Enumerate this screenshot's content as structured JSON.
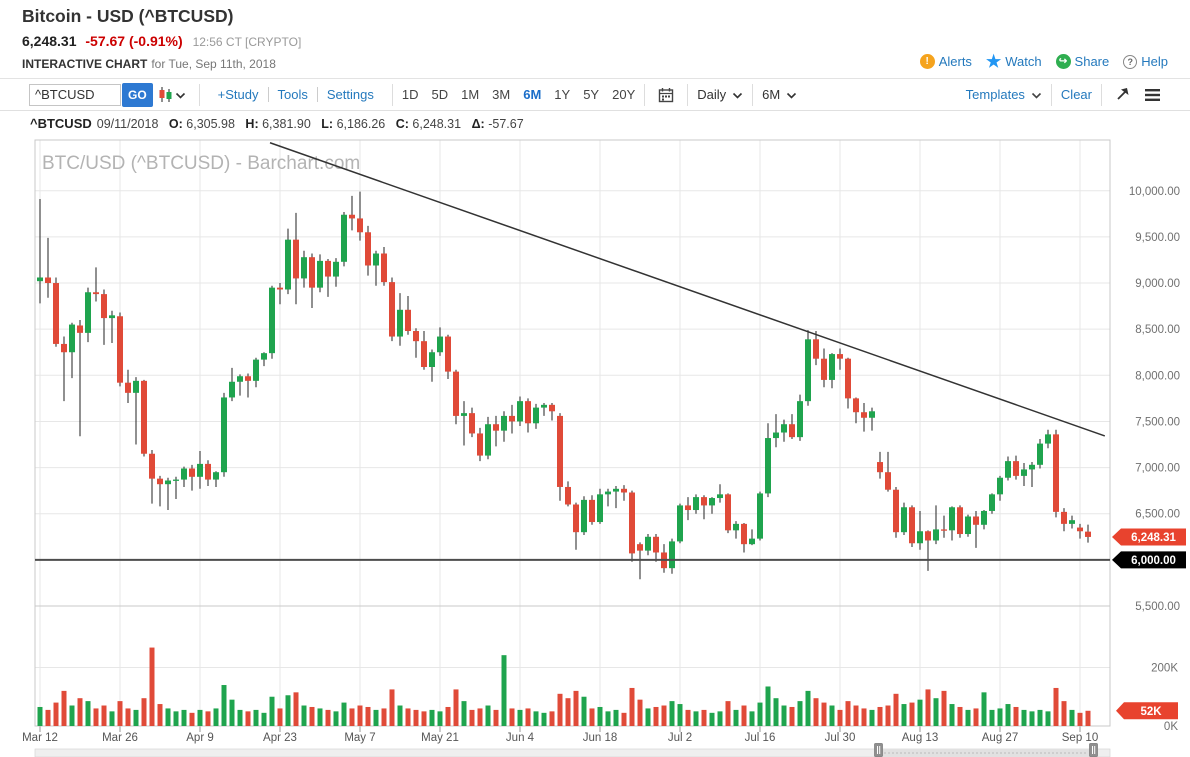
{
  "header": {
    "title": "Bitcoin - USD (^BTCUSD)",
    "last_price": "6,248.31",
    "change": "-57.67 (-0.91%)",
    "quote_time": "12:56 CT [CRYPTO]",
    "page_label": "INTERACTIVE CHART",
    "page_date": "for Tue, Sep 11th, 2018",
    "links": {
      "alerts": "Alerts",
      "watch": "Watch",
      "share": "Share",
      "help": "Help"
    }
  },
  "toolbar": {
    "symbol_value": "^BTCUSD",
    "go_label": "GO",
    "study_label": "+Study",
    "tools_label": "Tools",
    "settings_label": "Settings",
    "ranges": [
      "1D",
      "5D",
      "1M",
      "3M",
      "6M",
      "1Y",
      "5Y",
      "20Y"
    ],
    "active_range": "6M",
    "frequency_value": "Daily",
    "period_value": "6M",
    "templates_label": "Templates",
    "clear_label": "Clear"
  },
  "quote_bar": {
    "symbol": "^BTCUSD",
    "date": "09/11/2018",
    "o_label": "O:",
    "o": "6,305.98",
    "h_label": "H:",
    "h": "6,381.90",
    "l_label": "L:",
    "l": "6,186.26",
    "c_label": "C:",
    "c": "6,248.31",
    "delta_label": "Δ:",
    "delta": "-57.67"
  },
  "colors": {
    "up": "#1fa44e",
    "down": "#e04a38",
    "wick": "#222222",
    "badge_red": "#e8432e",
    "badge_black": "#000000",
    "grid": "#e7e7e7",
    "border": "#c9c9c9",
    "support": "#4d4d4d",
    "trend": "#333333",
    "axis_text": "#707070",
    "xaxis_text": "#555555",
    "watermark": "#b3b3b3",
    "link_blue": "#2479bd"
  },
  "chart_data": {
    "type": "candlestick+volume",
    "watermark": "BTC/USD (^BTCUSD) - Barchart.com",
    "layout": {
      "x0": 40,
      "dx": 8,
      "price_ylim": [
        5500,
        10550
      ],
      "vol_ylim": [
        0,
        410
      ]
    },
    "y_axis": {
      "values": [
        10000,
        9500,
        9000,
        8500,
        8000,
        7500,
        7000,
        6500,
        5500
      ],
      "labels": [
        "10,000.00",
        "9,500.00",
        "9,000.00",
        "8,500.00",
        "8,000.00",
        "7,500.00",
        "7,000.00",
        "6,500.00",
        "5,500.00"
      ]
    },
    "volume_axis": {
      "values": [
        200,
        0
      ],
      "labels": [
        "200K",
        "0K"
      ]
    },
    "x_ticks": [
      {
        "i": 0,
        "label": "Mar 12"
      },
      {
        "i": 10,
        "label": "Mar 26"
      },
      {
        "i": 20,
        "label": "Apr 9"
      },
      {
        "i": 30,
        "label": "Apr 23"
      },
      {
        "i": 40,
        "label": "May 7"
      },
      {
        "i": 50,
        "label": "May 21"
      },
      {
        "i": 60,
        "label": "Jun 4"
      },
      {
        "i": 70,
        "label": "Jun 18"
      },
      {
        "i": 80,
        "label": "Jul 2"
      },
      {
        "i": 90,
        "label": "Jul 16"
      },
      {
        "i": 100,
        "label": "Jul 30"
      },
      {
        "i": 110,
        "label": "Aug 13"
      },
      {
        "i": 120,
        "label": "Aug 27"
      },
      {
        "i": 130,
        "label": "Sep 10"
      }
    ],
    "last_price": 6248.31,
    "last_price_label": "6,248.31",
    "support_line": 6000,
    "support_label": "6,000.00",
    "last_volume": 52,
    "last_volume_label": "52K",
    "trendline": {
      "from": {
        "index": 28.75,
        "price": 10520
      },
      "to": {
        "index": 133.1,
        "price": 7343
      }
    },
    "candles": [
      [
        9020,
        9910,
        8780,
        9060,
        65
      ],
      [
        9060,
        9490,
        8840,
        9000,
        55
      ],
      [
        9000,
        9060,
        8310,
        8340,
        80
      ],
      [
        8340,
        8420,
        7720,
        8250,
        120
      ],
      [
        8250,
        8570,
        7970,
        8550,
        70
      ],
      [
        8540,
        8600,
        7340,
        8460,
        95
      ],
      [
        8460,
        8950,
        8360,
        8900,
        85
      ],
      [
        8900,
        9170,
        8800,
        8880,
        60
      ],
      [
        8880,
        8930,
        8330,
        8620,
        70
      ],
      [
        8620,
        8700,
        8350,
        8650,
        50
      ],
      [
        8640,
        8680,
        7880,
        7920,
        85
      ],
      [
        7920,
        8060,
        7700,
        7810,
        60
      ],
      [
        7810,
        7980,
        7250,
        7940,
        55
      ],
      [
        7940,
        7950,
        7120,
        7150,
        95
      ],
      [
        7150,
        7190,
        6610,
        6880,
        268
      ],
      [
        6880,
        6910,
        6580,
        6820,
        75
      ],
      [
        6820,
        6890,
        6540,
        6860,
        60
      ],
      [
        6860,
        6900,
        6660,
        6870,
        50
      ],
      [
        6870,
        7010,
        6790,
        6990,
        55
      ],
      [
        6990,
        7030,
        6750,
        6900,
        45
      ],
      [
        6900,
        7180,
        6770,
        7040,
        55
      ],
      [
        7040,
        7080,
        6800,
        6870,
        50
      ],
      [
        6870,
        6960,
        6790,
        6950,
        60
      ],
      [
        6950,
        7810,
        6900,
        7760,
        140
      ],
      [
        7760,
        8080,
        7720,
        7930,
        90
      ],
      [
        7930,
        8010,
        7780,
        7990,
        55
      ],
      [
        7990,
        8020,
        7760,
        7940,
        50
      ],
      [
        7940,
        8190,
        7870,
        8170,
        55
      ],
      [
        8170,
        8250,
        8100,
        8240,
        45
      ],
      [
        8240,
        8970,
        8180,
        8950,
        100
      ],
      [
        8950,
        9000,
        8770,
        8930,
        60
      ],
      [
        8930,
        9590,
        8880,
        9470,
        105
      ],
      [
        9470,
        9760,
        8770,
        9050,
        115
      ],
      [
        9050,
        9350,
        8950,
        9280,
        70
      ],
      [
        9280,
        9320,
        8730,
        8950,
        65
      ],
      [
        8950,
        9310,
        8900,
        9240,
        60
      ],
      [
        9240,
        9260,
        8850,
        9070,
        55
      ],
      [
        9070,
        9270,
        8960,
        9230,
        50
      ],
      [
        9230,
        9770,
        9180,
        9740,
        80
      ],
      [
        9740,
        9945,
        9570,
        9700,
        60
      ],
      [
        9700,
        9990,
        9460,
        9550,
        70
      ],
      [
        9550,
        9620,
        9080,
        9190,
        65
      ],
      [
        9190,
        9350,
        8970,
        9320,
        55
      ],
      [
        9320,
        9390,
        8970,
        9010,
        60
      ],
      [
        9010,
        9060,
        8370,
        8420,
        125
      ],
      [
        8420,
        8890,
        8320,
        8710,
        70
      ],
      [
        8710,
        8860,
        8440,
        8480,
        60
      ],
      [
        8480,
        8510,
        8190,
        8370,
        55
      ],
      [
        8370,
        8480,
        8060,
        8090,
        50
      ],
      [
        8090,
        8280,
        7930,
        8250,
        55
      ],
      [
        8250,
        8520,
        8210,
        8420,
        50
      ],
      [
        8420,
        8440,
        7960,
        8040,
        65
      ],
      [
        8040,
        8060,
        7470,
        7560,
        125
      ],
      [
        7560,
        7720,
        7240,
        7590,
        85
      ],
      [
        7590,
        7650,
        7330,
        7370,
        55
      ],
      [
        7370,
        7430,
        7070,
        7130,
        60
      ],
      [
        7130,
        7550,
        7090,
        7470,
        70
      ],
      [
        7470,
        7560,
        7230,
        7400,
        55
      ],
      [
        7400,
        7610,
        7280,
        7560,
        242
      ],
      [
        7560,
        7680,
        7370,
        7500,
        60
      ],
      [
        7500,
        7770,
        7450,
        7720,
        55
      ],
      [
        7720,
        7750,
        7380,
        7480,
        60
      ],
      [
        7480,
        7690,
        7420,
        7650,
        50
      ],
      [
        7650,
        7700,
        7560,
        7680,
        45
      ],
      [
        7680,
        7700,
        7510,
        7610,
        50
      ],
      [
        7560,
        7590,
        6640,
        6790,
        110
      ],
      [
        6790,
        6850,
        6580,
        6600,
        95
      ],
      [
        6600,
        6620,
        6110,
        6300,
        120
      ],
      [
        6300,
        6690,
        6270,
        6650,
        100
      ],
      [
        6650,
        6700,
        6380,
        6410,
        60
      ],
      [
        6410,
        6770,
        6390,
        6710,
        65
      ],
      [
        6710,
        6770,
        6580,
        6740,
        50
      ],
      [
        6740,
        6800,
        6560,
        6770,
        55
      ],
      [
        6770,
        6810,
        6640,
        6730,
        45
      ],
      [
        6730,
        6750,
        5980,
        6070,
        130
      ],
      [
        6170,
        6190,
        5790,
        6100,
        90
      ],
      [
        6100,
        6280,
        6050,
        6250,
        60
      ],
      [
        6250,
        6280,
        5980,
        6080,
        65
      ],
      [
        6080,
        6170,
        5860,
        5910,
        70
      ],
      [
        5910,
        6230,
        5850,
        6200,
        85
      ],
      [
        6200,
        6610,
        6180,
        6590,
        75
      ],
      [
        6590,
        6680,
        6430,
        6540,
        55
      ],
      [
        6540,
        6710,
        6500,
        6680,
        50
      ],
      [
        6680,
        6700,
        6440,
        6590,
        55
      ],
      [
        6590,
        6680,
        6500,
        6670,
        45
      ],
      [
        6670,
        6820,
        6620,
        6710,
        50
      ],
      [
        6710,
        6720,
        6290,
        6320,
        85
      ],
      [
        6320,
        6420,
        6230,
        6390,
        55
      ],
      [
        6390,
        6400,
        6080,
        6170,
        70
      ],
      [
        6170,
        6330,
        6160,
        6230,
        50
      ],
      [
        6230,
        6740,
        6210,
        6720,
        80
      ],
      [
        6720,
        7480,
        6680,
        7320,
        135
      ],
      [
        7320,
        7580,
        7220,
        7380,
        95
      ],
      [
        7380,
        7520,
        7280,
        7470,
        70
      ],
      [
        7470,
        7580,
        7310,
        7330,
        65
      ],
      [
        7330,
        7790,
        7290,
        7720,
        85
      ],
      [
        7720,
        8490,
        7670,
        8390,
        120
      ],
      [
        8390,
        8480,
        8110,
        8180,
        95
      ],
      [
        8180,
        8290,
        7870,
        7950,
        80
      ],
      [
        7950,
        8240,
        7860,
        8230,
        70
      ],
      [
        8230,
        8290,
        8060,
        8180,
        55
      ],
      [
        8180,
        8190,
        7640,
        7750,
        85
      ],
      [
        7750,
        7760,
        7480,
        7600,
        70
      ],
      [
        7600,
        7700,
        7390,
        7540,
        60
      ],
      [
        7540,
        7650,
        7400,
        7610,
        55
      ],
      [
        7060,
        7170,
        6880,
        6950,
        65
      ],
      [
        6950,
        7170,
        6740,
        6760,
        70
      ],
      [
        6760,
        6790,
        6240,
        6300,
        110
      ],
      [
        6300,
        6620,
        6270,
        6570,
        75
      ],
      [
        6570,
        6590,
        6140,
        6180,
        80
      ],
      [
        6180,
        6530,
        6110,
        6310,
        90
      ],
      [
        6310,
        6320,
        5880,
        6210,
        125
      ],
      [
        6210,
        6590,
        6170,
        6330,
        95
      ],
      [
        6330,
        6480,
        6240,
        6320,
        120
      ],
      [
        6320,
        6580,
        6210,
        6570,
        75
      ],
      [
        6570,
        6590,
        6240,
        6280,
        65
      ],
      [
        6280,
        6490,
        6250,
        6470,
        55
      ],
      [
        6470,
        6530,
        6130,
        6380,
        60
      ],
      [
        6380,
        6540,
        6330,
        6530,
        115
      ],
      [
        6530,
        6720,
        6500,
        6710,
        55
      ],
      [
        6710,
        6910,
        6640,
        6890,
        60
      ],
      [
        6890,
        7120,
        6860,
        7070,
        75
      ],
      [
        7070,
        7130,
        6870,
        6910,
        65
      ],
      [
        6910,
        7050,
        6800,
        6980,
        55
      ],
      [
        6980,
        7060,
        6790,
        7030,
        50
      ],
      [
        7030,
        7310,
        6990,
        7260,
        55
      ],
      [
        7260,
        7410,
        7210,
        7360,
        50
      ],
      [
        7360,
        7410,
        6460,
        6520,
        130
      ],
      [
        6520,
        6560,
        6310,
        6390,
        85
      ],
      [
        6390,
        6480,
        6340,
        6430,
        55
      ],
      [
        6350,
        6390,
        6230,
        6310,
        45
      ],
      [
        6305.98,
        6381.9,
        6186.26,
        6248.31,
        52
      ]
    ]
  }
}
